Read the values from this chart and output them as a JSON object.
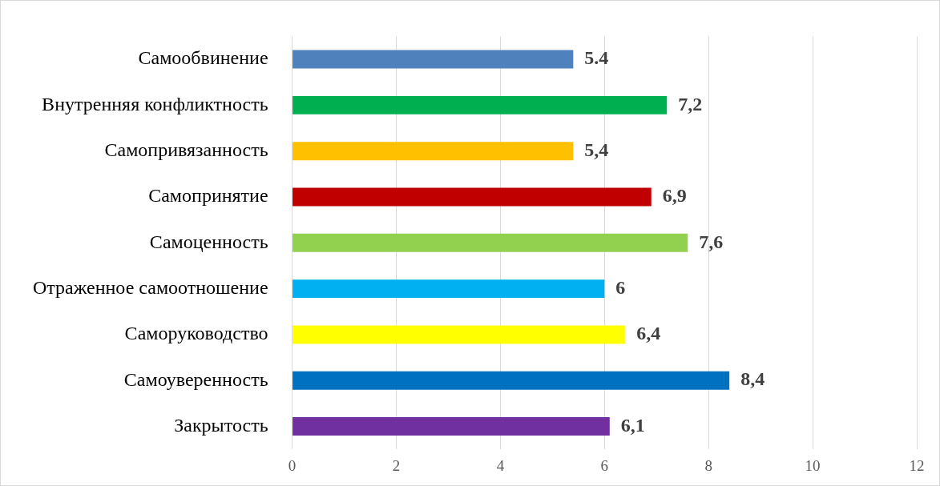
{
  "chart_data": {
    "type": "bar",
    "orientation": "horizontal",
    "categories": [
      "Самообвинение",
      "Внутренняя конфликтность",
      "Самопривязанность",
      "Самопринятие",
      "Самоценность",
      "Отраженное самоотношение",
      "Саморуководство",
      "Самоуверенность",
      "Закрытость"
    ],
    "values": [
      5.4,
      7.2,
      5.4,
      6.9,
      7.6,
      6,
      6.4,
      8.4,
      6.1
    ],
    "value_labels": [
      "5.4",
      "7,2",
      "5,4",
      "6,9",
      "7,6",
      "6",
      "6,4",
      "8,4",
      "6,1"
    ],
    "colors": [
      "#4f81bd",
      "#00b050",
      "#ffc000",
      "#c00000",
      "#92d050",
      "#00b0f0",
      "#ffff00",
      "#0070c0",
      "#7030a0"
    ],
    "xlim": [
      0,
      12
    ],
    "xticks": [
      0,
      2,
      4,
      6,
      8,
      10,
      12
    ],
    "grid": "x",
    "legend": false
  }
}
